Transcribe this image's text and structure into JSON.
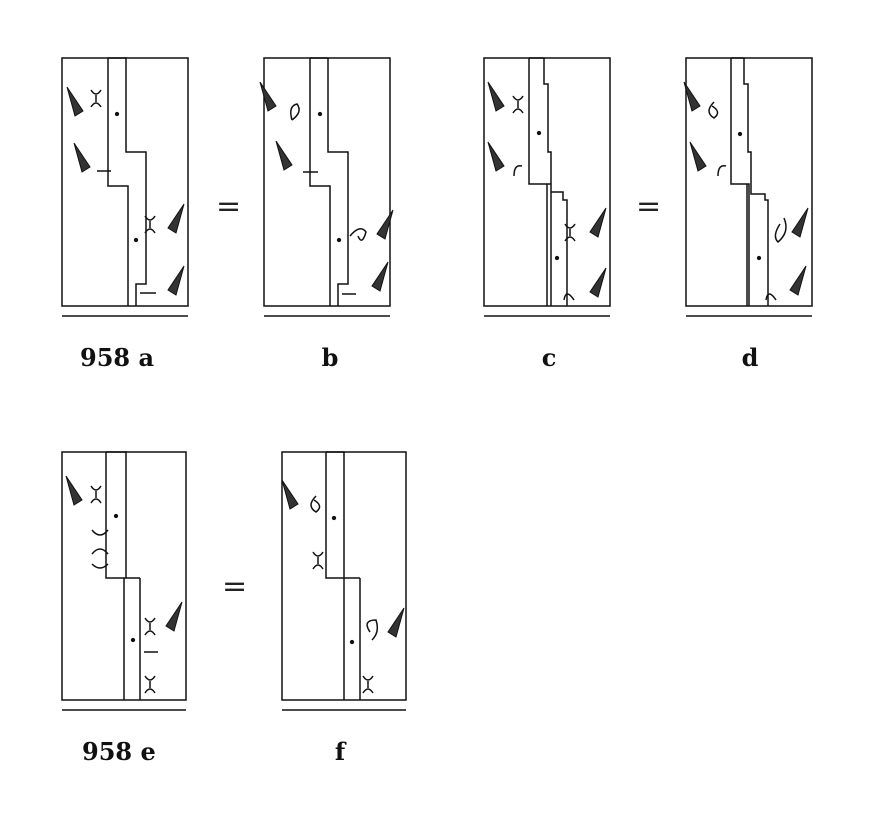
{
  "panels": [
    {
      "id": "a",
      "caption": "958 a"
    },
    {
      "id": "b",
      "caption": "b"
    },
    {
      "id": "c",
      "caption": "c"
    },
    {
      "id": "d",
      "caption": "d"
    },
    {
      "id": "e",
      "caption": "958 e"
    },
    {
      "id": "f",
      "caption": "f"
    }
  ],
  "equals": [
    "=",
    "=",
    "="
  ],
  "colors": {
    "ink": "#111111",
    "wedge": "#333333"
  }
}
